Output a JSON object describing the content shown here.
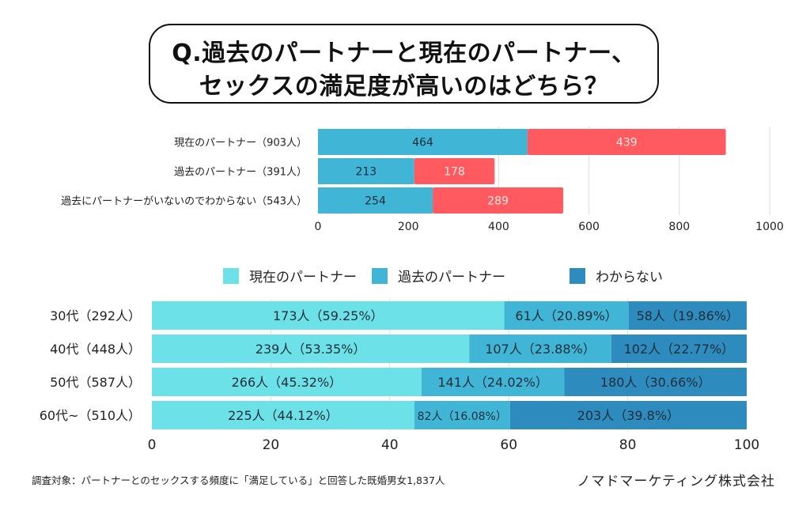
{
  "title": {
    "line1": "Q.過去のパートナーと現在のパートナー、",
    "line2": "セックスの満足度が高いのはどちら？"
  },
  "chart_data": [
    {
      "type": "bar",
      "orientation": "horizontal",
      "stacked": true,
      "categories": [
        "現在のパートナー（903人）",
        "過去のパートナー（391人）",
        "過去にパートナーがいないのでわからない（543人）"
      ],
      "series": [
        {
          "name": "series-1",
          "color": "#40B5D6",
          "label_color": "#1f2d3a",
          "values": [
            464,
            213,
            254
          ]
        },
        {
          "name": "series-2",
          "color": "#FF5A5F",
          "label_color": "#fde8e8",
          "values": [
            439,
            178,
            289
          ]
        }
      ],
      "xlim": [
        0,
        1000
      ],
      "xticks": [
        0,
        200,
        400,
        600,
        800,
        1000
      ],
      "grid": true,
      "legend": "none"
    },
    {
      "type": "bar",
      "orientation": "horizontal",
      "stacked": true,
      "percent": true,
      "categories": [
        "30代（292人）",
        "40代（448人）",
        "50代（587人）",
        "60代~（510人）"
      ],
      "series": [
        {
          "name": "現在のパートナー",
          "color": "#6CE2E8",
          "values": [
            59.25,
            53.35,
            45.32,
            44.12
          ],
          "labels": [
            "173人（59.25%）",
            "239人（53.35%）",
            "266人（45.32%）",
            "225人（44.12%）"
          ]
        },
        {
          "name": "過去のパートナー",
          "color": "#40B5D6",
          "values": [
            20.89,
            23.88,
            24.02,
            16.08
          ],
          "labels": [
            "61人（20.89%）",
            "107人（23.88%）",
            "141人（24.02%）",
            "82人（16.08%）"
          ]
        },
        {
          "name": "わからない",
          "color": "#2E8BBE",
          "values": [
            19.86,
            22.77,
            30.66,
            39.8
          ],
          "labels": [
            "58人（19.86%）",
            "102人（22.77%）",
            "180人（30.66%）",
            "203人（39.8%）"
          ]
        }
      ],
      "xlim": [
        0,
        100
      ],
      "xticks": [
        0,
        20,
        40,
        60,
        80,
        100
      ],
      "grid": true,
      "legend": "top"
    }
  ],
  "footnote": "調査対象：パートナーとのセックスする頻度に「満足している」と回答した既婚男女1,837人",
  "company": "ノマドマーケティング株式会社"
}
